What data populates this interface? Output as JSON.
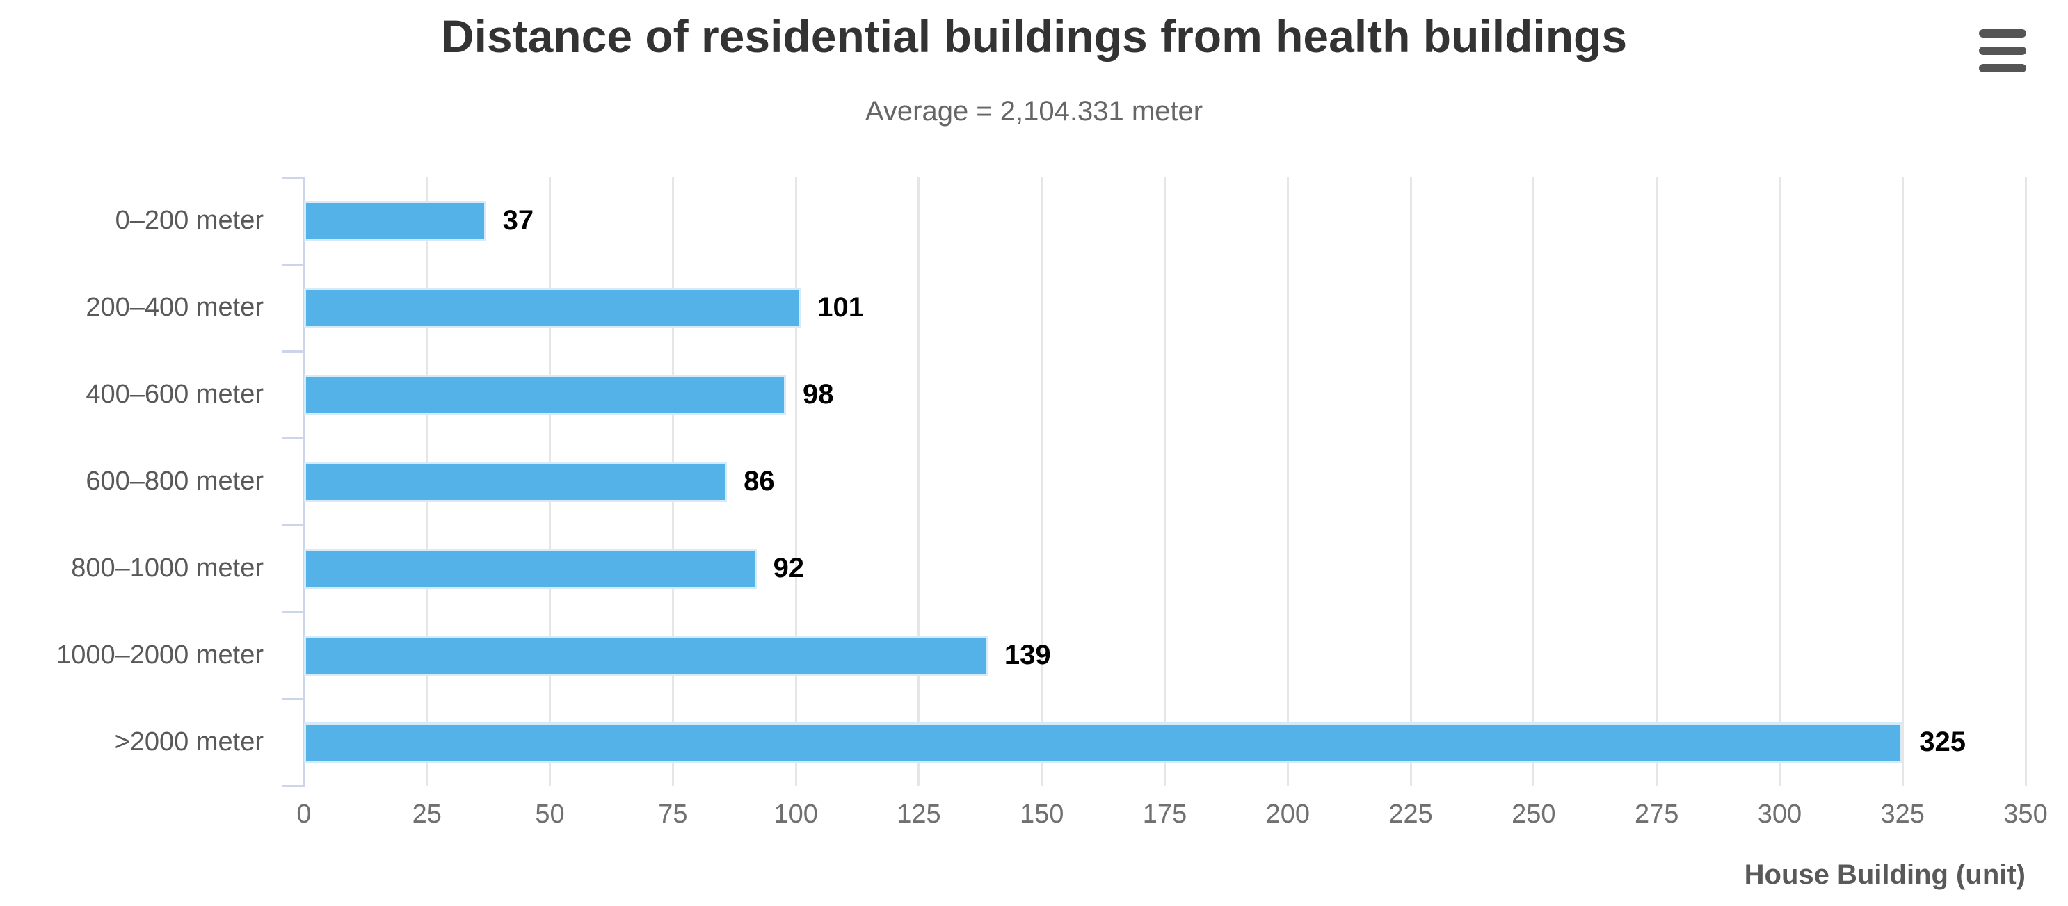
{
  "header": {
    "title": "Distance of residential buildings from health buildings",
    "subtitle": "Average = 2,104.331 meter"
  },
  "menu": {
    "icon": "hamburger-menu-icon"
  },
  "chart_data": {
    "type": "bar",
    "orientation": "horizontal",
    "title": "Distance of residential buildings from health buildings",
    "subtitle": "Average = 2,104.331 meter",
    "categories": [
      "0–200 meter",
      "200–400 meter",
      "400–600 meter",
      "600–800 meter",
      "800–1000 meter",
      "1000–2000 meter",
      ">2000 meter"
    ],
    "values": [
      37,
      101,
      98,
      86,
      92,
      139,
      325
    ],
    "xlabel": "House Building (unit)",
    "ylabel": "",
    "xlim": [
      0,
      350
    ],
    "xticks": [
      0,
      25,
      50,
      75,
      100,
      125,
      150,
      175,
      200,
      225,
      250,
      275,
      300,
      325,
      350
    ],
    "grid": true,
    "legend": "none",
    "data_labels_visible": true,
    "colors": {
      "bar": "#55b2e9",
      "bar_border": "#d6ebfa",
      "grid": "#e6e6e6",
      "axis": "#ccd6eb",
      "title": "#333333",
      "subtitle": "#666666",
      "category_label": "#595959",
      "tick_label": "#707070",
      "value_label": "#000000",
      "axis_title": "#595959",
      "menu_icon": "#555555"
    }
  }
}
